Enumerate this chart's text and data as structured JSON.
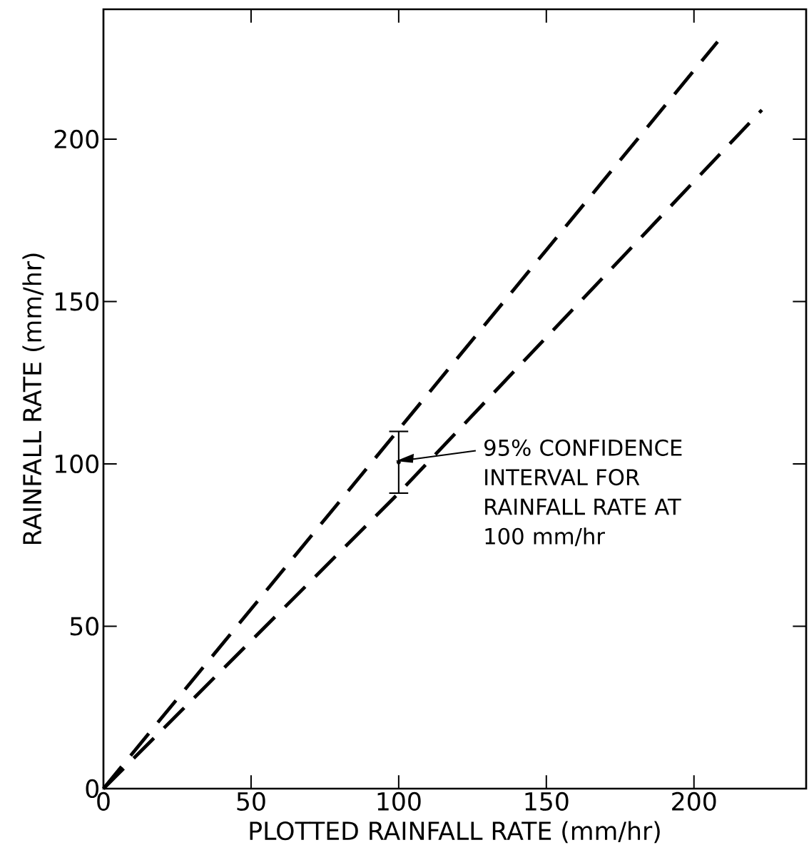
{
  "chart_data": {
    "type": "line",
    "xlabel": "PLOTTED RAINFALL RATE (mm/hr)",
    "ylabel": "RAINFALL RATE (mm/hr)",
    "xlim": [
      0,
      238
    ],
    "ylim": [
      0,
      240
    ],
    "xticks": [
      0,
      50,
      100,
      150,
      200
    ],
    "yticks": [
      0,
      50,
      100,
      150,
      200
    ],
    "line_style": "dashed",
    "series": [
      {
        "color": "#000000",
        "x": [
          0,
          208
        ],
        "values": [
          0,
          230
        ]
      },
      {
        "color": "#000000",
        "x": [
          0,
          100,
          223
        ],
        "values": [
          0,
          91,
          209
        ]
      },
      {
        "type": "scatter",
        "color": "#000000",
        "x": [
          100
        ],
        "values": [
          100.5
        ],
        "errors": [
          [
            91,
            110
          ]
        ]
      }
    ],
    "annotations": [
      "95% CONFIDENCE INTERVAL FOR RAINFALL RATE AT 100 mm/hr"
    ]
  }
}
